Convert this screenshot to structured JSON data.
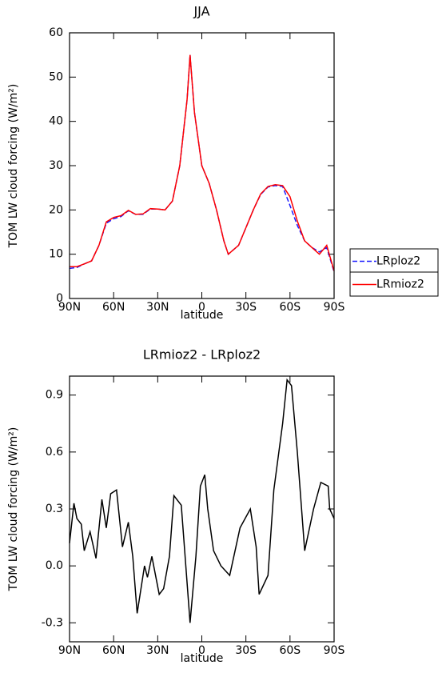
{
  "chart_data": [
    {
      "type": "line",
      "title": "JJA",
      "x_label": "latitude",
      "y_label": "TOM LW cloud forcing (W/m²)",
      "x": [
        90,
        85,
        80,
        75,
        70,
        65,
        60,
        55,
        50,
        45,
        40,
        35,
        30,
        25,
        20,
        15,
        10,
        8,
        5,
        0,
        -5,
        -10,
        -15,
        -18,
        -25,
        -30,
        -35,
        -40,
        -45,
        -50,
        -55,
        -60,
        -65,
        -70,
        -75,
        -80,
        -85,
        -90
      ],
      "series": [
        {
          "name": "LRploz2",
          "color": "#1a1aff",
          "dash": "dashed",
          "values": [
            6.8,
            7,
            7.8,
            8.5,
            12,
            17,
            18,
            18.5,
            19.8,
            19,
            19,
            20.2,
            20.2,
            20,
            22,
            30,
            45,
            55,
            42,
            30,
            26,
            20,
            13,
            10,
            12,
            16,
            20,
            23.5,
            25.2,
            25.5,
            25.3,
            21,
            16.5,
            13,
            11.5,
            10.5,
            11.5,
            6
          ]
        },
        {
          "name": "LRmioz2",
          "color": "#ff0000",
          "dash": "solid",
          "values": [
            7.2,
            7.2,
            7.8,
            8.5,
            12,
            17.3,
            18.3,
            18.7,
            19.9,
            19,
            19.1,
            20.3,
            20.2,
            20,
            22,
            30,
            45,
            55,
            42,
            30,
            26,
            20,
            13,
            10,
            12,
            16,
            20,
            23.6,
            25.3,
            25.7,
            25.5,
            23,
            17.5,
            13,
            11.5,
            10,
            12,
            6.2
          ]
        }
      ],
      "xlim": [
        90,
        -90
      ],
      "xticks": [
        {
          "value": 90,
          "label": "90N"
        },
        {
          "value": 60,
          "label": "60N"
        },
        {
          "value": 30,
          "label": "30N"
        },
        0,
        {
          "value": -30,
          "label": "30S"
        },
        {
          "value": -60,
          "label": "60S"
        },
        {
          "value": -90,
          "label": "90S"
        }
      ],
      "ylim": [
        0,
        60
      ],
      "yticks": [
        0,
        10,
        20,
        30,
        40,
        50,
        60
      ],
      "legend": "right"
    },
    {
      "type": "line",
      "title": "LRmioz2 - LRploz2",
      "x_label": "latitude",
      "y_label": "TOM LW cloud forcing (W/m²)",
      "x": [
        90,
        87,
        85,
        82,
        80,
        76,
        72,
        68,
        65,
        62,
        58,
        56,
        54,
        50,
        47,
        44,
        39,
        37,
        34,
        29,
        26,
        22,
        19,
        14,
        8,
        4,
        1,
        -2,
        -4,
        -8,
        -13,
        -19,
        -26,
        -33,
        -37,
        -39,
        -45,
        -49,
        -55,
        -58,
        -61,
        -65,
        -70,
        -76,
        -81,
        -86,
        -87,
        -90
      ],
      "values": [
        0.12,
        0.33,
        0.25,
        0.22,
        0.08,
        0.18,
        0.04,
        0.35,
        0.2,
        0.38,
        0.4,
        0.25,
        0.1,
        0.23,
        0.05,
        -0.25,
        0.0,
        -0.06,
        0.05,
        -0.15,
        -0.12,
        0.05,
        0.37,
        0.32,
        -0.3,
        0.05,
        0.42,
        0.48,
        0.3,
        0.08,
        0.0,
        -0.05,
        0.2,
        0.3,
        0.1,
        -0.15,
        -0.05,
        0.4,
        0.75,
        0.98,
        0.95,
        0.6,
        0.08,
        0.3,
        0.44,
        0.42,
        0.3,
        0.25
      ],
      "color": "#000000",
      "xlim": [
        90,
        -90
      ],
      "xticks": [
        {
          "value": 90,
          "label": "90N"
        },
        {
          "value": 60,
          "label": "60N"
        },
        {
          "value": 30,
          "label": "30N"
        },
        0,
        {
          "value": -30,
          "label": "30S"
        },
        {
          "value": -60,
          "label": "60S"
        },
        {
          "value": -90,
          "label": "90S"
        }
      ],
      "ylim": [
        -0.4,
        1.0
      ],
      "yticks": [
        {
          "value": -0.3,
          "label": "-0.3"
        },
        {
          "value": 0,
          "label": "0.0"
        },
        0.3,
        0.6,
        0.9
      ]
    }
  ]
}
